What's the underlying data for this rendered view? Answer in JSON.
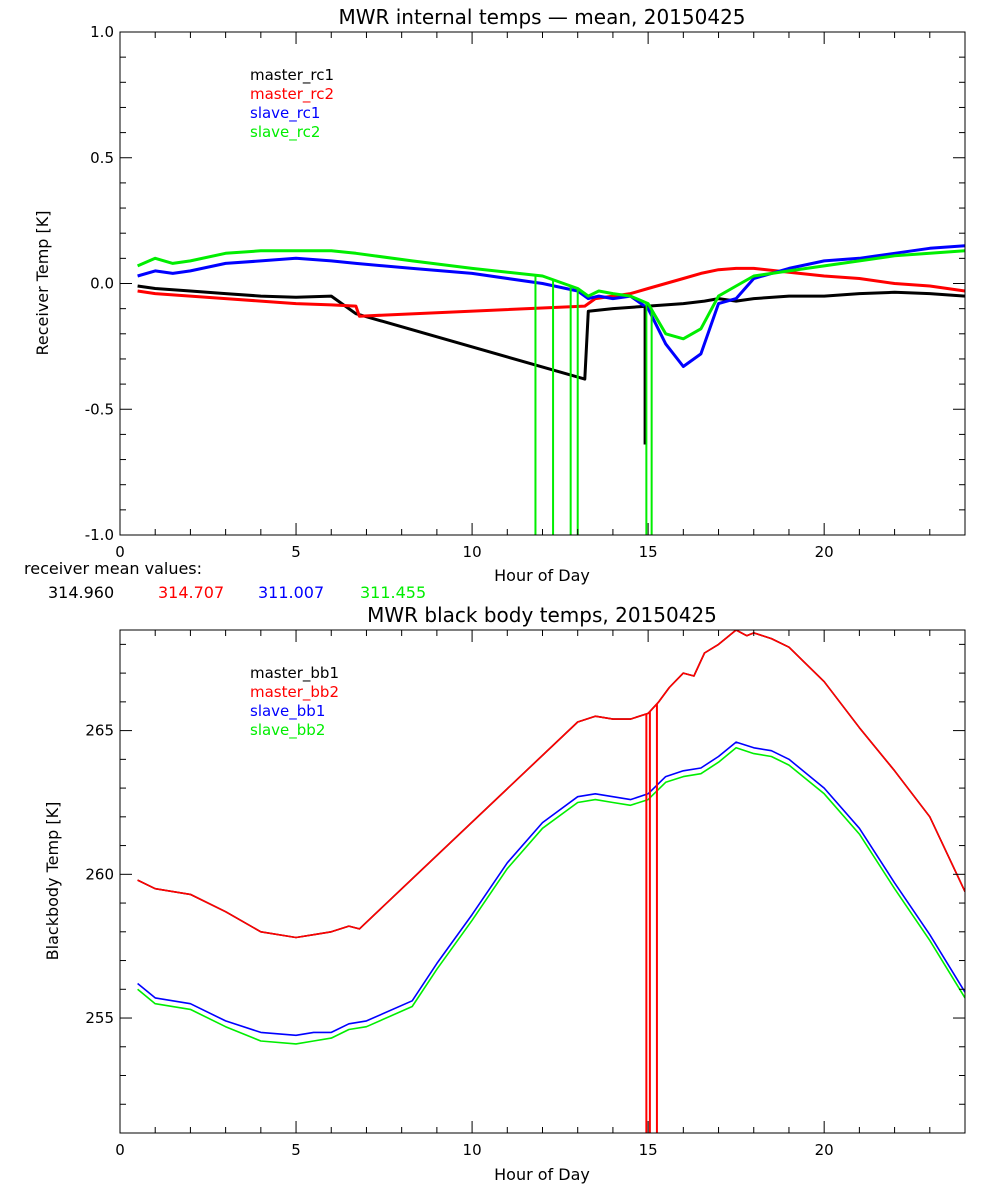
{
  "chart_data": [
    {
      "type": "line",
      "title": "MWR internal temps — mean, 20150425",
      "xlabel": "Hour of Day",
      "ylabel": "Receiver Temp [K]",
      "xlim": [
        0,
        24
      ],
      "ylim": [
        -1.0,
        1.0
      ],
      "xticks": [
        0,
        5,
        10,
        15,
        20
      ],
      "xtick_labels": [
        "0",
        "5",
        "10",
        "15",
        "20"
      ],
      "yticks": [
        -1.0,
        -0.5,
        0.0,
        0.5,
        1.0
      ],
      "ytick_labels": [
        "-1.0",
        "-0.5",
        "0.0",
        "0.5",
        "1.0"
      ],
      "legend_position": "top-left",
      "series": [
        {
          "name": "master_rc1",
          "color": "#000000",
          "x": [
            0.5,
            1,
            2,
            3,
            4,
            5,
            6,
            6.7,
            13.2,
            13.3,
            14,
            15,
            16,
            16.6,
            17,
            17.5,
            18,
            19,
            20,
            21,
            22,
            23,
            24
          ],
          "y": [
            -0.01,
            -0.02,
            -0.03,
            -0.04,
            -0.05,
            -0.055,
            -0.05,
            -0.12,
            -0.38,
            -0.11,
            -0.1,
            -0.09,
            -0.08,
            -0.07,
            -0.06,
            -0.07,
            -0.06,
            -0.05,
            -0.05,
            -0.04,
            -0.035,
            -0.04,
            -0.05
          ]
        },
        {
          "name": "master_rc2",
          "color": "#ff0000",
          "x": [
            0.5,
            1,
            2,
            3,
            4,
            5,
            6,
            6.7,
            6.8,
            13.2,
            13.5,
            14,
            14.5,
            15,
            15.5,
            16,
            16.5,
            17,
            17.5,
            18,
            19,
            20,
            21,
            22,
            23,
            24
          ],
          "y": [
            -0.03,
            -0.04,
            -0.05,
            -0.06,
            -0.07,
            -0.08,
            -0.085,
            -0.09,
            -0.13,
            -0.09,
            -0.06,
            -0.05,
            -0.04,
            -0.02,
            0.0,
            0.02,
            0.04,
            0.055,
            0.06,
            0.06,
            0.045,
            0.03,
            0.02,
            0.0,
            -0.01,
            -0.03
          ]
        },
        {
          "name": "slave_rc1",
          "color": "#0000ff",
          "x": [
            0.5,
            1,
            1.5,
            2,
            3,
            4,
            5,
            6,
            6.7,
            8.3,
            10,
            12,
            13,
            13.3,
            13.6,
            14,
            14.5,
            15,
            15.5,
            16,
            16.5,
            17,
            17.5,
            18,
            19,
            20,
            21,
            22,
            23,
            24
          ],
          "y": [
            0.03,
            0.05,
            0.04,
            0.05,
            0.08,
            0.09,
            0.1,
            0.09,
            0.08,
            0.06,
            0.04,
            0.0,
            -0.03,
            -0.06,
            -0.05,
            -0.06,
            -0.05,
            -0.1,
            -0.24,
            -0.33,
            -0.28,
            -0.08,
            -0.06,
            0.02,
            0.06,
            0.09,
            0.1,
            0.12,
            0.14,
            0.15
          ]
        },
        {
          "name": "slave_rc2",
          "color": "#00ee00",
          "x": [
            0.5,
            1,
            1.5,
            2,
            3,
            4,
            5,
            6,
            6.7,
            8.3,
            10,
            12,
            13,
            13.3,
            13.6,
            14,
            14.5,
            15,
            15.5,
            16,
            16.5,
            17,
            17.5,
            18,
            19,
            20,
            21,
            22,
            23,
            24
          ],
          "y": [
            0.07,
            0.1,
            0.08,
            0.09,
            0.12,
            0.13,
            0.13,
            0.13,
            0.12,
            0.09,
            0.06,
            0.03,
            -0.02,
            -0.05,
            -0.03,
            -0.04,
            -0.05,
            -0.08,
            -0.2,
            -0.22,
            -0.18,
            -0.05,
            -0.01,
            0.03,
            0.05,
            0.07,
            0.09,
            0.11,
            0.12,
            0.13
          ]
        }
      ],
      "spikes": [
        {
          "series": "slave_rc2",
          "x": [
            11.8,
            12.3,
            12.8,
            13.0,
            14.95,
            15.1
          ],
          "y_min": -1.0
        },
        {
          "series": "master_rc1",
          "x": [
            14.9
          ],
          "y_min": -0.64
        }
      ]
    },
    {
      "type": "line",
      "title": "MWR black body temps, 20150425",
      "xlabel": "Hour of Day",
      "ylabel": "Blackbody Temp [K]",
      "xlim": [
        0,
        24
      ],
      "ylim": [
        251,
        268.5
      ],
      "xticks": [
        0,
        5,
        10,
        15,
        20
      ],
      "xtick_labels": [
        "0",
        "5",
        "10",
        "15",
        "20"
      ],
      "yticks": [
        255,
        260,
        265
      ],
      "ytick_labels": [
        "255",
        "260",
        "265"
      ],
      "legend_position": "top-left",
      "series": [
        {
          "name": "master_bb1",
          "color": "#000000",
          "x": [
            0.5,
            1,
            2,
            3,
            4,
            5,
            5.5,
            6,
            6.5,
            6.8,
            13,
            13.5,
            14,
            14.5,
            15,
            15.3,
            15.6,
            16,
            16.3,
            16.6,
            17,
            17.3,
            17.5,
            17.8,
            18,
            18.5,
            19,
            20,
            21,
            22,
            23,
            24
          ],
          "y": [
            259.8,
            259.5,
            259.3,
            258.7,
            258.0,
            257.8,
            257.9,
            258.0,
            258.2,
            258.1,
            265.3,
            265.5,
            265.4,
            265.4,
            265.6,
            266.0,
            266.5,
            267.0,
            266.9,
            267.7,
            268.0,
            268.3,
            268.5,
            268.3,
            268.4,
            268.2,
            267.9,
            266.7,
            265.1,
            263.6,
            262.0,
            259.4
          ]
        },
        {
          "name": "master_bb2",
          "color": "#ff0000",
          "x": [
            0.5,
            1,
            2,
            3,
            4,
            5,
            5.5,
            6,
            6.5,
            6.8,
            13,
            13.5,
            14,
            14.5,
            15,
            15.3,
            15.6,
            16,
            16.3,
            16.6,
            17,
            17.3,
            17.5,
            17.8,
            18,
            18.5,
            19,
            20,
            21,
            22,
            23,
            24
          ],
          "y": [
            259.8,
            259.5,
            259.3,
            258.7,
            258.0,
            257.8,
            257.9,
            258.0,
            258.2,
            258.1,
            265.3,
            265.5,
            265.4,
            265.4,
            265.6,
            266.0,
            266.5,
            267.0,
            266.9,
            267.7,
            268.0,
            268.3,
            268.5,
            268.3,
            268.4,
            268.2,
            267.9,
            266.7,
            265.1,
            263.6,
            262.0,
            259.4
          ]
        },
        {
          "name": "slave_bb1",
          "color": "#0000ff",
          "x": [
            0.5,
            1,
            2,
            3,
            4,
            5,
            5.5,
            6,
            6.5,
            7,
            8.3,
            9,
            10,
            11,
            12,
            13,
            13.5,
            14,
            14.5,
            15,
            15.5,
            16,
            16.5,
            17,
            17.5,
            18,
            18.5,
            19,
            20,
            21,
            22,
            23,
            24
          ],
          "y": [
            256.2,
            255.7,
            255.5,
            254.9,
            254.5,
            254.4,
            254.5,
            254.5,
            254.8,
            254.9,
            255.6,
            256.9,
            258.6,
            260.4,
            261.8,
            262.7,
            262.8,
            262.7,
            262.6,
            262.8,
            263.4,
            263.6,
            263.7,
            264.1,
            264.6,
            264.4,
            264.3,
            264.0,
            263.0,
            261.6,
            259.7,
            257.9,
            255.9
          ]
        },
        {
          "name": "slave_bb2",
          "color": "#00ee00",
          "x": [
            0.5,
            1,
            2,
            3,
            4,
            5,
            5.5,
            6,
            6.5,
            7,
            8.3,
            9,
            10,
            11,
            12,
            13,
            13.5,
            14,
            14.5,
            15,
            15.5,
            16,
            16.5,
            17,
            17.5,
            18,
            18.5,
            19,
            20,
            21,
            22,
            23,
            24
          ],
          "y": [
            256.0,
            255.5,
            255.3,
            254.7,
            254.2,
            254.1,
            254.2,
            254.3,
            254.6,
            254.7,
            255.4,
            256.7,
            258.4,
            260.2,
            261.6,
            262.5,
            262.6,
            262.5,
            262.4,
            262.6,
            263.2,
            263.4,
            263.5,
            263.9,
            264.4,
            264.2,
            264.1,
            263.8,
            262.8,
            261.4,
            259.5,
            257.7,
            255.7
          ]
        }
      ],
      "spikes": [
        {
          "series": "master_bb2",
          "x": [
            14.95,
            15.05,
            15.25
          ],
          "y_min": 251.0
        }
      ]
    }
  ],
  "receiver_mean": {
    "label": "receiver mean values:",
    "values": [
      "314.960",
      "314.707",
      "311.007",
      "311.455"
    ],
    "colors": [
      "#000000",
      "#ff0000",
      "#0000ff",
      "#00ee00"
    ]
  }
}
